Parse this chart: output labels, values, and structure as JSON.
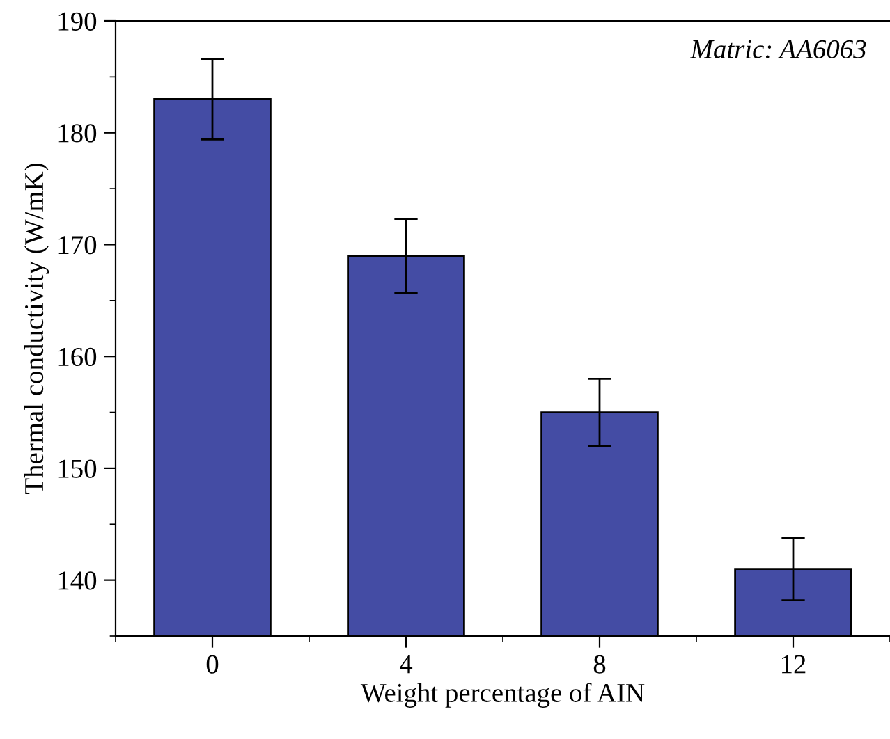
{
  "chart_data": {
    "type": "bar",
    "xlabel": "Weight percentage of AIN",
    "ylabel": "Thermal conductivity (W/mK)",
    "categories": [
      "0",
      "4",
      "8",
      "12"
    ],
    "values": [
      183,
      169,
      155,
      141
    ],
    "errors": [
      3.6,
      3.3,
      3.0,
      2.8
    ],
    "color": "#444ca4",
    "ylim": [
      135,
      190
    ],
    "yticks": [
      140,
      150,
      160,
      170,
      180,
      190
    ],
    "grid": false,
    "annotations": [
      "Matric: AA6063"
    ]
  }
}
